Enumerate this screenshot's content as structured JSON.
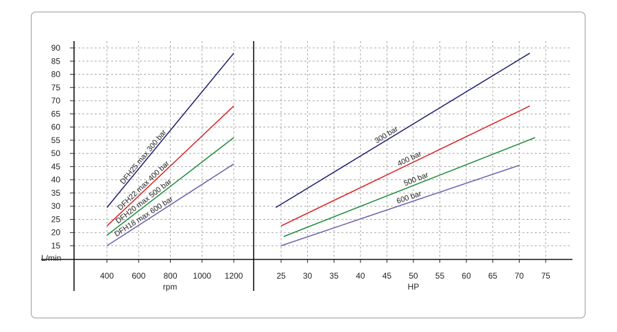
{
  "chart_data": [
    {
      "type": "line",
      "xlabel": "rpm",
      "ylabel": "L/min",
      "x_ticks": [
        400,
        600,
        800,
        1000,
        1200
      ],
      "y_ticks": [
        15,
        20,
        25,
        30,
        35,
        40,
        45,
        50,
        55,
        60,
        65,
        70,
        75,
        80,
        85,
        90
      ],
      "xlim": [
        230,
        1380
      ],
      "ylim": [
        10,
        92
      ],
      "grid": true,
      "series": [
        {
          "name": "DFH25 max 300 bar",
          "color": "#1b1b6b",
          "x": [
            400,
            1200
          ],
          "y": [
            29.5,
            88
          ]
        },
        {
          "name": "DFH22 max 400 bar",
          "color": "#d91f1f",
          "x": [
            400,
            1200
          ],
          "y": [
            22.5,
            68
          ]
        },
        {
          "name": "DFH20 max 500 bar",
          "color": "#1d8a3a",
          "x": [
            400,
            1200
          ],
          "y": [
            19,
            56
          ]
        },
        {
          "name": "DFH18 max 600 bar",
          "color": "#6a5fae",
          "x": [
            400,
            1200
          ],
          "y": [
            15,
            46
          ]
        }
      ]
    },
    {
      "type": "line",
      "xlabel": "HP",
      "ylabel": "L/min",
      "x_ticks": [
        25,
        30,
        35,
        40,
        45,
        50,
        55,
        60,
        65,
        70,
        75
      ],
      "y_ticks": [
        15,
        20,
        25,
        30,
        35,
        40,
        45,
        50,
        55,
        60,
        65,
        70,
        75,
        80,
        85,
        90
      ],
      "xlim": [
        20,
        80
      ],
      "ylim": [
        10,
        92
      ],
      "grid": true,
      "series": [
        {
          "name": "300 bar",
          "color": "#1b1b6b",
          "x": [
            24,
            72
          ],
          "y": [
            29.5,
            88
          ]
        },
        {
          "name": "400 bar",
          "color": "#d91f1f",
          "x": [
            25,
            72
          ],
          "y": [
            22.5,
            68
          ]
        },
        {
          "name": "500 bar",
          "color": "#1d8a3a",
          "x": [
            25.5,
            73
          ],
          "y": [
            18.5,
            56
          ]
        },
        {
          "name": "600 bar",
          "color": "#6a5fae",
          "x": [
            25,
            70
          ],
          "y": [
            15,
            45.5
          ]
        }
      ]
    }
  ]
}
